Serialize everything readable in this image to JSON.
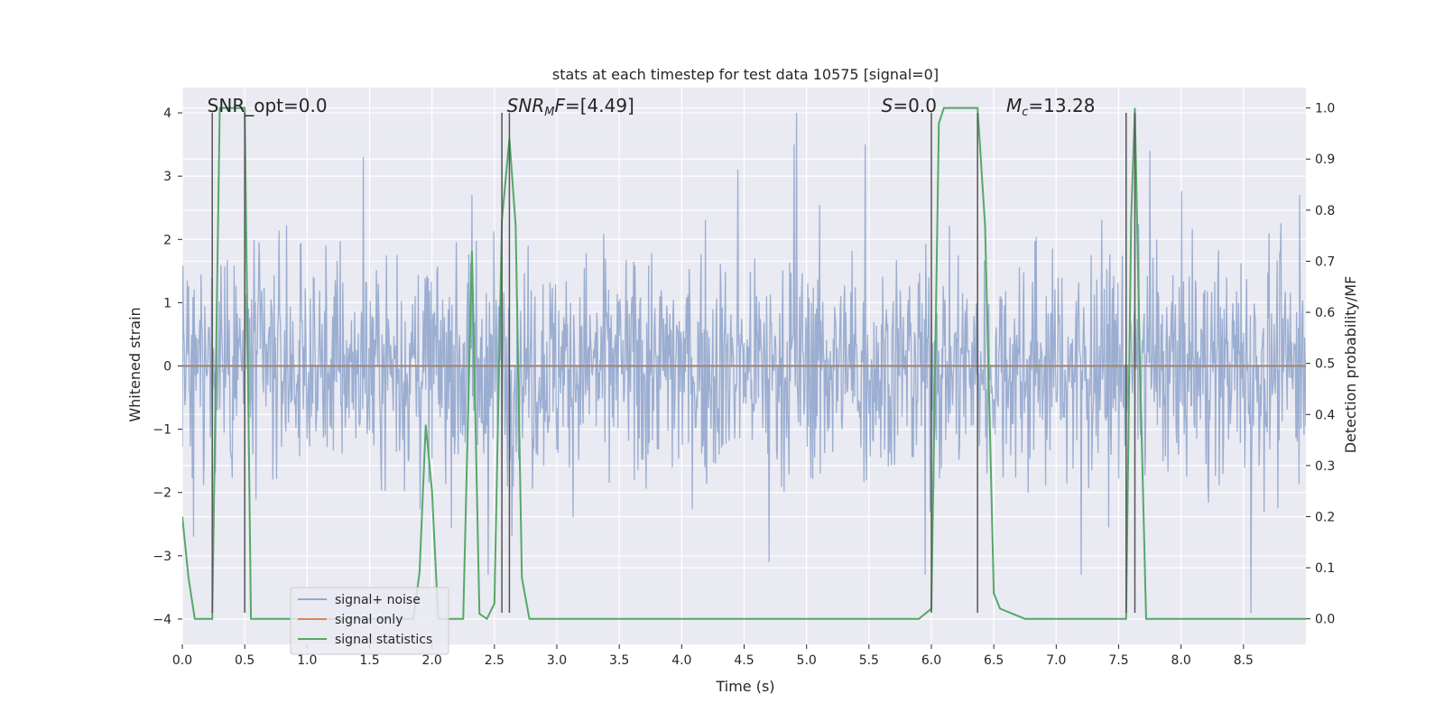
{
  "chart_data": {
    "type": "line",
    "title": "stats at each timestep for test data 10575 [signal=0]",
    "xlabel": "Time (s)",
    "ylabel_left": "Whitened strain",
    "ylabel_right": "Detection probability/MF",
    "xlim": [
      0.0,
      9.0
    ],
    "ylim_left": [
      -4.4,
      4.4
    ],
    "ylim_right": [
      -0.05,
      1.04
    ],
    "xticks": [
      0.0,
      0.5,
      1.0,
      1.5,
      2.0,
      2.5,
      3.0,
      3.5,
      4.0,
      4.5,
      5.0,
      5.5,
      6.0,
      6.5,
      7.0,
      7.5,
      8.0,
      8.5
    ],
    "yticks_left": [
      -4,
      -3,
      -2,
      -1,
      0,
      1,
      2,
      3,
      4
    ],
    "yticks_right": [
      0.0,
      0.1,
      0.2,
      0.3,
      0.4,
      0.5,
      0.6,
      0.7,
      0.8,
      0.9,
      1.0
    ],
    "grid": true,
    "legend_position": "lower-left",
    "annotations": [
      {
        "html": "SNR_opt=0.0",
        "x": 0.2
      },
      {
        "html": "<tspan font-style=\"italic\">SNR</tspan><tspan font-style=\"italic\" font-size=\"13\" dy=\"4\">M</tspan><tspan font-style=\"italic\" dy=\"-4\">F</tspan>=[4.49]",
        "x": 2.6
      },
      {
        "html": "<tspan font-style=\"italic\">S</tspan>=0.0",
        "x": 5.6
      },
      {
        "html": "<tspan font-style=\"italic\">M</tspan><tspan font-style=\"italic\" font-size=\"13\" dy=\"4\">c</tspan><tspan dy=\"-4\">=13.28</tspan>",
        "x": 6.6
      }
    ],
    "vertical_lines": [
      0.24,
      0.5,
      2.56,
      2.62,
      6.0,
      6.37,
      7.56,
      7.63
    ],
    "vertical_line_range_left": [
      -3.9,
      4.0
    ],
    "series": [
      {
        "name": "signal+ noise",
        "color": "#4c72b0",
        "axis": "left",
        "kind": "noise",
        "stats": {
          "std": 0.88,
          "peaks_up": [
            [
              1.45,
              3.3
            ],
            [
              2.32,
              2.7
            ],
            [
              4.45,
              3.1
            ],
            [
              4.9,
              3.5
            ],
            [
              4.92,
              4.0
            ],
            [
              5.47,
              3.5
            ],
            [
              7.75,
              3.4
            ],
            [
              8.95,
              2.7
            ]
          ],
          "peaks_down": [
            [
              0.09,
              -2.7
            ],
            [
              2.45,
              -3.3
            ],
            [
              4.7,
              -3.1
            ],
            [
              5.95,
              -3.3
            ],
            [
              7.2,
              -3.3
            ],
            [
              8.56,
              -3.9
            ]
          ]
        }
      },
      {
        "name": "signal only",
        "color": "#dd8452",
        "axis": "left",
        "kind": "flat",
        "value": 0.0
      },
      {
        "name": "signal statistics",
        "color": "#55a868",
        "axis": "right",
        "x": [
          0.0,
          0.05,
          0.1,
          0.15,
          0.2,
          0.24,
          0.3,
          0.35,
          0.4,
          0.45,
          0.5,
          0.55,
          0.6,
          1.0,
          1.5,
          1.85,
          1.9,
          1.95,
          2.0,
          2.05,
          2.1,
          2.15,
          2.2,
          2.25,
          2.32,
          2.38,
          2.44,
          2.5,
          2.56,
          2.62,
          2.67,
          2.72,
          2.78,
          2.85,
          3.0,
          4.0,
          5.0,
          5.5,
          5.9,
          6.0,
          6.06,
          6.1,
          6.2,
          6.3,
          6.37,
          6.43,
          6.5,
          6.55,
          6.65,
          6.75,
          6.9,
          7.0,
          7.5,
          7.56,
          7.6,
          7.63,
          7.67,
          7.72,
          7.8,
          8.0,
          8.5,
          9.0
        ],
        "y": [
          0.2,
          0.08,
          0.0,
          0.0,
          0.0,
          0.0,
          1.0,
          1.0,
          1.0,
          1.0,
          1.0,
          0.0,
          0.0,
          0.0,
          0.0,
          0.0,
          0.09,
          0.38,
          0.25,
          0.0,
          0.0,
          0.0,
          0.0,
          0.0,
          0.72,
          0.01,
          0.0,
          0.03,
          0.78,
          0.94,
          0.77,
          0.08,
          0.0,
          0.0,
          0.0,
          0.0,
          0.0,
          0.0,
          0.0,
          0.02,
          0.97,
          1.0,
          1.0,
          1.0,
          1.0,
          0.77,
          0.05,
          0.02,
          0.01,
          0.0,
          0.0,
          0.0,
          0.0,
          0.0,
          0.78,
          1.0,
          0.5,
          0.0,
          0.0,
          0.0,
          0.0,
          0.0
        ]
      }
    ]
  }
}
